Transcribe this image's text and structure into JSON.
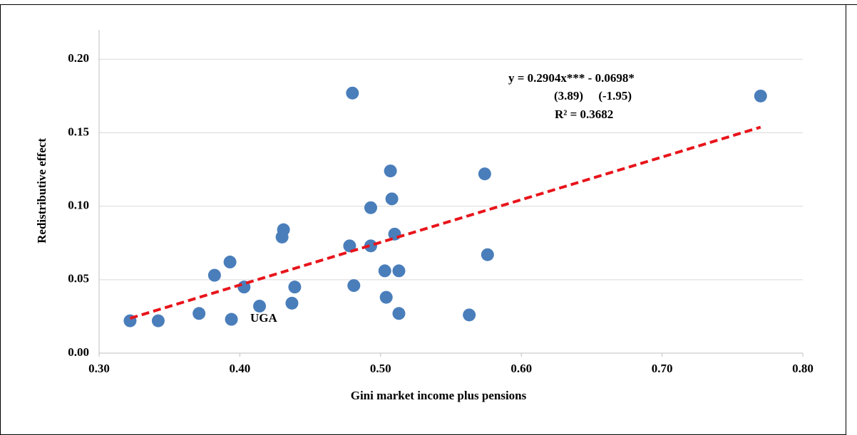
{
  "chart_data": {
    "type": "scatter",
    "x_label": "Gini market income plus pensions",
    "y_label": "Redistributive effect",
    "color": "#4a7ebb",
    "x": [
      0.322,
      0.342,
      0.371,
      0.382,
      0.393,
      0.394,
      0.403,
      0.414,
      0.43,
      0.431,
      0.437,
      0.439,
      0.478,
      0.48,
      0.481,
      0.493,
      0.493,
      0.503,
      0.504,
      0.507,
      0.508,
      0.51,
      0.513,
      0.513,
      0.563,
      0.574,
      0.576,
      0.77
    ],
    "values": [
      0.022,
      0.022,
      0.027,
      0.053,
      0.062,
      0.023,
      0.045,
      0.032,
      0.079,
      0.084,
      0.034,
      0.045,
      0.073,
      0.177,
      0.046,
      0.099,
      0.073,
      0.056,
      0.038,
      0.124,
      0.105,
      0.081,
      0.056,
      0.027,
      0.026,
      0.122,
      0.067,
      0.175
    ],
    "trendline": {
      "color": "#e8141b",
      "x": [
        0.322,
        0.77
      ],
      "y": [
        0.0237,
        0.1538
      ]
    },
    "annotations": [
      "y = 0.2904x*** - 0.0698*",
      "(3.89)     (-1.95)",
      "R² = 0.3682",
      "UGA"
    ],
    "xlim": [
      0.3,
      0.8
    ],
    "xticks": [
      {
        "value": 0.3,
        "label": "0.30"
      },
      {
        "value": 0.4,
        "label": "0.40"
      },
      {
        "value": 0.5,
        "label": "0.50"
      },
      {
        "value": 0.6,
        "label": "0.60"
      },
      {
        "value": 0.7,
        "label": "0.70"
      },
      {
        "value": 0.8,
        "label": "0.80"
      }
    ],
    "ylim": [
      0,
      0.22
    ],
    "yticks": [
      {
        "value": 0,
        "label": "0.00"
      },
      {
        "value": 0.05,
        "label": "0.05"
      },
      {
        "value": 0.1,
        "label": "0.10"
      },
      {
        "value": 0.15,
        "label": "0.15"
      },
      {
        "value": 0.2,
        "label": "0.20"
      }
    ],
    "grid": true
  }
}
